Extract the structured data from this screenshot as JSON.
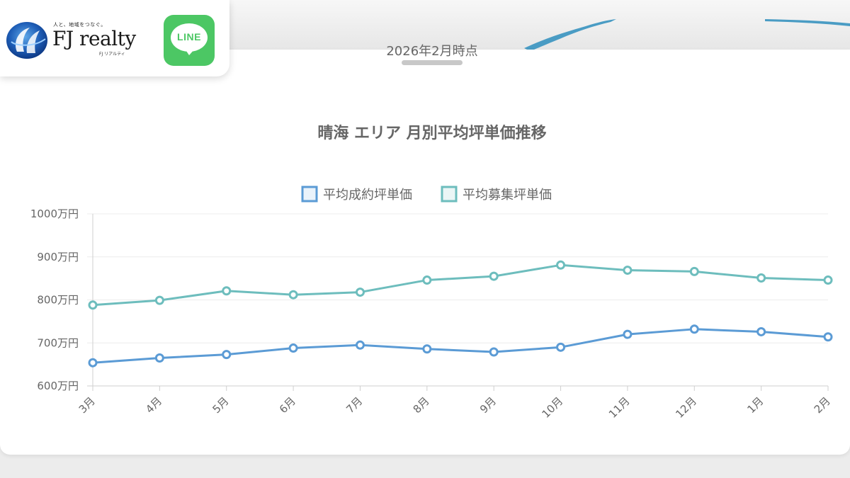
{
  "header": {
    "tagline": "人と、地域をつなぐ。",
    "brand_name": "FJ realty",
    "brand_sub": "FJ リアルティ",
    "line_label": "LINE"
  },
  "as_of": "2026年2月時点",
  "colors": {
    "contract_series": "#5b9bd5",
    "listing_series": "#6dbdbd",
    "line_green": "#4cc764",
    "band_blue": "#4a9cc4"
  },
  "chart_data": {
    "type": "line",
    "title": "晴海 エリア 月別平均坪単価推移",
    "categories": [
      "3月",
      "4月",
      "5月",
      "6月",
      "7月",
      "8月",
      "9月",
      "10月",
      "11月",
      "12月",
      "1月",
      "2月"
    ],
    "series": [
      {
        "name": "平均成約坪単価",
        "values": [
          654,
          665,
          673,
          688,
          695,
          686,
          679,
          690,
          720,
          732,
          726,
          714
        ]
      },
      {
        "name": "平均募集坪単価",
        "values": [
          788,
          799,
          821,
          812,
          818,
          846,
          855,
          881,
          869,
          866,
          851,
          846
        ]
      }
    ],
    "ylim": [
      600,
      1000
    ],
    "yticks": [
      "600万円",
      "700万円",
      "800万円",
      "900万円",
      "1000万円"
    ],
    "legend_position": "top-center",
    "grid": true
  }
}
